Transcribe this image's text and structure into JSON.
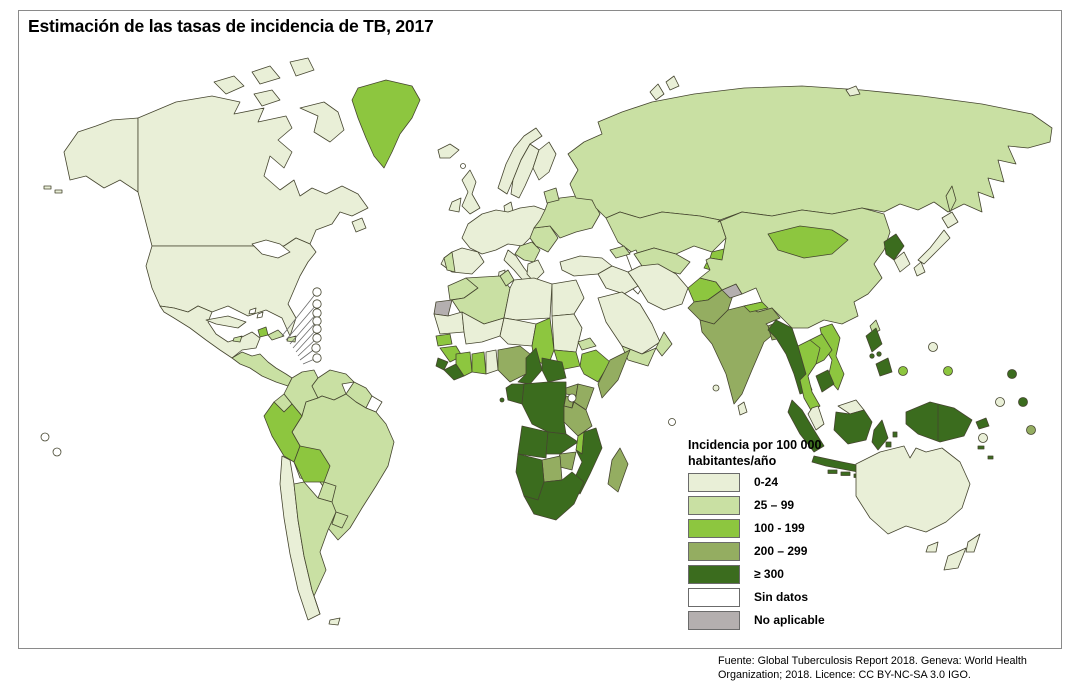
{
  "title": "Estimación de las tasas de incidencia de TB, 2017",
  "legend": {
    "title_line1": "Incidencia por 100 000",
    "title_line2": "habitantes/año",
    "items": [
      {
        "key": "cat1",
        "label": "0-24",
        "color": "#e9efd7"
      },
      {
        "key": "cat2",
        "label": "25 – 99",
        "color": "#c9e0a3"
      },
      {
        "key": "cat3",
        "label": "100 - 199",
        "color": "#8dc63f"
      },
      {
        "key": "cat4",
        "label": "200 – 299",
        "color": "#94ad61"
      },
      {
        "key": "cat5",
        "label": "≥ 300",
        "color": "#3b6c1e"
      },
      {
        "key": "nodata",
        "label": "Sin datos",
        "color": "#ffffff"
      },
      {
        "key": "na",
        "label": "No aplicable",
        "color": "#b4afaf"
      }
    ]
  },
  "source": {
    "line1": "Fuente:  Global Tuberculosis Report 2018. Geneva: World Health",
    "line2": "Organization; 2018. Licence: CC BY-NC-SA 3.0 IGO."
  },
  "map": {
    "stroke_color": "#45452f",
    "regions": {
      "alaska": "cat1",
      "aleutian1": "cat1",
      "aleutian2": "cat1",
      "canada": "cat1",
      "baffin": "cat1",
      "arctic1": "cat1",
      "arctic2": "cat1",
      "arctic3": "cat1",
      "arctic4": "cat1",
      "newfoundland": "cat1",
      "greenland": "cat3",
      "usa": "cat1",
      "great-lakes": "nodata",
      "mexico": "cat1",
      "central-america": "cat2",
      "cuba": "cat1",
      "jamaica": "cat2",
      "haiti": "cat3",
      "dominican-republic": "cat2",
      "puerto-rico": "cat2",
      "bahamas1": "nodata",
      "bahamas2": "nodata",
      "carib1": "nodata",
      "carib2": "nodata",
      "carib3": "nodata",
      "carib4": "nodata",
      "carib5": "nodata",
      "carib6": "nodata",
      "carib7": "nodata",
      "carib8": "nodata",
      "galapagos1": "nodata",
      "galapagos2": "nodata",
      "colombia": "cat2",
      "venezuela": "cat2",
      "guyana-suriname": "cat2",
      "french-guiana": "nodata",
      "brazil": "cat2",
      "ecuador": "cat2",
      "peru": "cat3",
      "bolivia": "cat3",
      "paraguay": "cat2",
      "chile": "cat1",
      "argentina": "cat2",
      "uruguay": "cat2",
      "falklands": "cat1",
      "iceland": "cat1",
      "faroe": "nodata",
      "uk": "cat1",
      "ireland": "cat1",
      "norway": "cat1",
      "sweden": "cat1",
      "finland": "cat1",
      "denmark": "cat1",
      "western-europe": "cat1",
      "iberia": "cat1",
      "portugal": "cat2",
      "italy": "cat1",
      "sicily": "cat1",
      "sardinia": "cat1",
      "greece": "cat1",
      "balkans": "cat2",
      "romania-bulgaria": "cat2",
      "eastern-europe": "cat2",
      "baltics": "cat2",
      "russia": "cat2",
      "sakhalin": "cat2",
      "novaya1": "cat1",
      "novaya2": "cat1",
      "rus-isl1": "cat1",
      "kazakhstan": "cat2",
      "caspian": "nodata",
      "uzbek-turkmen": "cat2",
      "kyrgyzstan": "cat3",
      "tajikistan": "cat3",
      "caucasus": "cat2",
      "turkey": "cat1",
      "syria-iraq": "cat1",
      "iran": "cat1",
      "saudi": "cat1",
      "yemen": "cat2",
      "oman": "cat2",
      "afghanistan": "cat3",
      "pakistan": "cat4",
      "kashmir": "na",
      "india": "cat4",
      "nepal": "cat3",
      "bangladesh": "cat4",
      "sri-lanka": "cat1",
      "maldives": "cat1",
      "seychelles": "nodata",
      "china": "cat2",
      "mongolia": "cat3",
      "taiwan": "cat2",
      "north-korea": "cat5",
      "south-korea": "cat1",
      "hokkaido": "cat1",
      "honshu": "cat1",
      "kyushu": "cat1",
      "myanmar": "cat5",
      "thailand": "cat3",
      "laos": "cat3",
      "vietnam": "cat3",
      "cambodia": "cat5",
      "malay-peninsula": "cat1",
      "sumatra": "cat5",
      "java": "cat5",
      "borneo-my": "cat1",
      "kalimantan": "cat5",
      "sulawesi": "cat5",
      "sunda1": "cat5",
      "sunda2": "cat5",
      "sunda3": "cat5",
      "maluku1": "cat5",
      "maluku2": "cat5",
      "timor": "cat5",
      "luzon": "cat5",
      "visayas1": "cat5",
      "visayas2": "cat5",
      "mindanao": "cat5",
      "new-guinea": "cat5",
      "new-britain": "cat5",
      "solomon1": "cat5",
      "solomon2": "cat5",
      "morocco": "cat2",
      "western-sahara": "na",
      "algeria": "cat2",
      "tunisia": "cat2",
      "libya": "cat1",
      "egypt": "cat1",
      "mauritania": "cat1",
      "mali": "cat1",
      "niger": "cat1",
      "chad": "cat3",
      "sudan": "cat1",
      "south-sudan": "cat3",
      "eritrea": "cat2",
      "ethiopia": "cat3",
      "somalia": "cat4",
      "senegal": "cat3",
      "guinea": "cat3",
      "sierra-leone": "cat5",
      "liberia": "cat5",
      "cote-divoire": "cat3",
      "ghana": "cat3",
      "togo-benin": "cat1",
      "nigeria": "cat4",
      "cameroon": "cat5",
      "car": "cat5",
      "sao-tome": "cat5",
      "uganda": "cat4",
      "kenya": "cat4",
      "rwanda-burundi": "cat4",
      "tanzania": "cat4",
      "lake-victoria": "nodata",
      "gabon-congo": "cat5",
      "drc": "cat5",
      "angola": "cat5",
      "zambia": "cat5",
      "malawi": "cat3",
      "mozambique": "cat5",
      "zimbabwe": "cat4",
      "botswana": "cat4",
      "namibia": "cat5",
      "south-africa": "cat5",
      "madagascar": "cat4",
      "australia": "cat1",
      "tasmania": "cat1",
      "nz-north": "cat1",
      "nz-south": "cat1",
      "pac1": "cat1",
      "pac2": "cat3",
      "pac3": "cat3",
      "pac4": "cat5",
      "pac5": "cat1",
      "pac6": "cat5",
      "pac7": "cat4",
      "pac8": "cat1",
      "pac9": "nodata",
      "pac10": "nodata"
    }
  }
}
